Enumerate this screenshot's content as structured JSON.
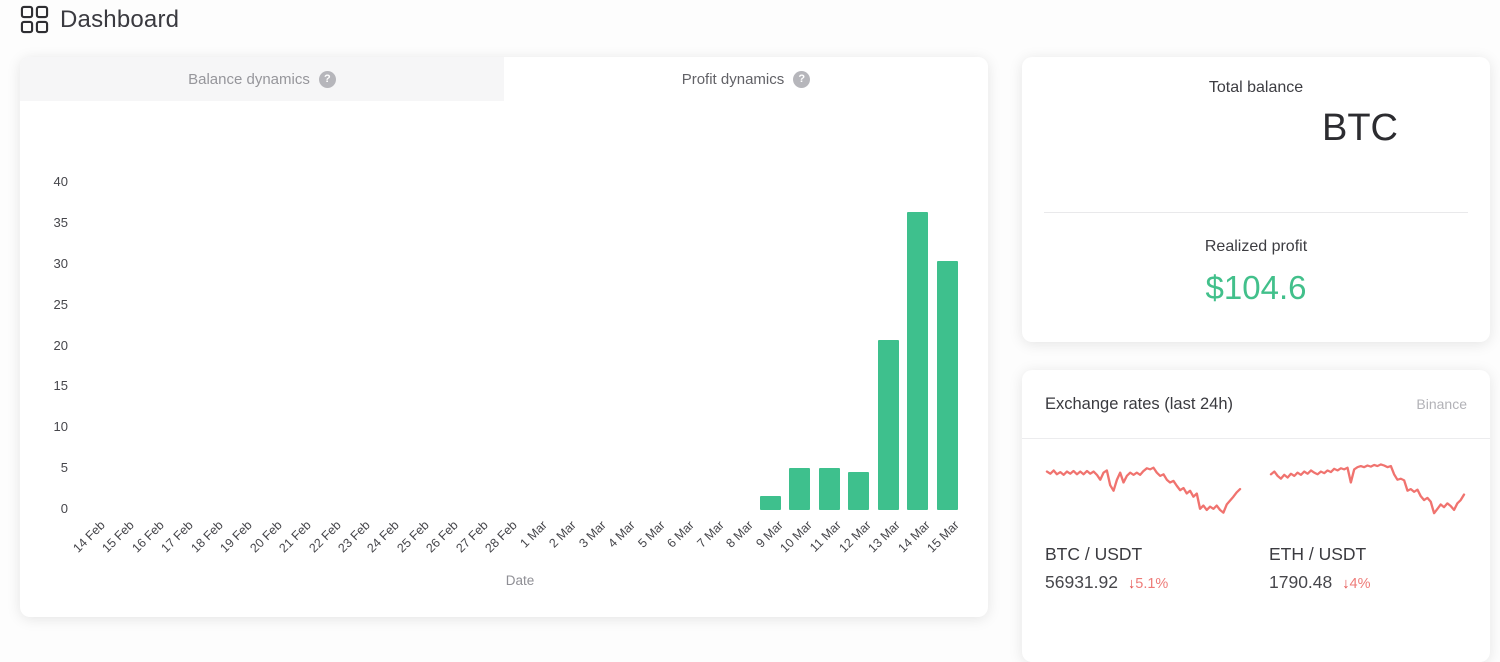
{
  "header": {
    "title": "Dashboard"
  },
  "tabs": [
    {
      "label": "Balance dynamics",
      "active": false
    },
    {
      "label": "Profit dynamics",
      "active": true
    }
  ],
  "icons": {
    "question_mark": "?",
    "down_arrow": "↓",
    "dashboard_grid": "grid-2x2-icon"
  },
  "balance_card": {
    "total_balance_label": "Total balance",
    "total_balance_currency": "BTC",
    "realized_profit_label": "Realized profit",
    "realized_profit_value": "$104.6",
    "profit_color": "#42c08b"
  },
  "exchange_card": {
    "title": "Exchange rates (last 24h)",
    "source": "Binance",
    "spark_color": "#f0736f",
    "arrow_color": "#e4504e",
    "change_color": "#ee7b78",
    "pairs": [
      {
        "pair": "BTC / USDT",
        "price": "56931.92",
        "change": "5.1%",
        "direction": "down"
      },
      {
        "pair": "ETH / USDT",
        "price": "1790.48",
        "change": "4%",
        "direction": "down"
      }
    ]
  },
  "chart_data": [
    {
      "type": "bar",
      "title": "Profit dynamics",
      "xlabel": "Date",
      "ylabel": "",
      "ylim": [
        0,
        40
      ],
      "yticks": [
        0,
        5,
        10,
        15,
        20,
        25,
        30,
        35,
        40
      ],
      "grid": false,
      "bar_color": "#3ec08d",
      "categories": [
        "14 Feb",
        "15 Feb",
        "16 Feb",
        "17 Feb",
        "18 Feb",
        "19 Feb",
        "20 Feb",
        "21 Feb",
        "22 Feb",
        "23 Feb",
        "24 Feb",
        "25 Feb",
        "26 Feb",
        "27 Feb",
        "28 Feb",
        "1 Mar",
        "2 Mar",
        "3 Mar",
        "4 Mar",
        "5 Mar",
        "6 Mar",
        "7 Mar",
        "8 Mar",
        "9 Mar",
        "10 Mar",
        "11 Mar",
        "12 Mar",
        "13 Mar",
        "14 Mar",
        "15 Mar"
      ],
      "values": [
        0,
        0,
        0,
        0,
        0,
        0,
        0,
        0,
        0,
        0,
        0,
        0,
        0,
        0,
        0,
        0,
        0,
        0,
        0,
        0,
        0,
        0,
        0,
        1.7,
        5.1,
        5.1,
        4.6,
        20.8,
        36.4,
        30.4
      ]
    },
    {
      "type": "line",
      "title": "BTC / USDT last 24h sparkline",
      "legend": "BTC / USDT",
      "y_levels_pct": [
        80,
        76,
        82,
        75,
        79,
        74,
        80,
        76,
        81,
        75,
        80,
        75,
        81,
        76,
        80,
        74,
        65,
        78,
        82,
        55,
        45,
        65,
        78,
        60,
        72,
        78,
        74,
        78,
        74,
        81,
        86,
        84,
        87,
        78,
        72,
        75,
        65,
        60,
        63,
        54,
        46,
        50,
        40,
        45,
        34,
        40,
        12,
        18,
        10,
        16,
        12,
        18,
        10,
        5,
        20,
        27,
        34,
        42,
        48
      ]
    },
    {
      "type": "line",
      "title": "ETH / USDT last 24h sparkline",
      "legend": "ETH / USDT",
      "y_levels_pct": [
        75,
        80,
        72,
        67,
        74,
        69,
        76,
        72,
        78,
        74,
        80,
        76,
        82,
        78,
        75,
        80,
        77,
        82,
        79,
        85,
        82,
        86,
        84,
        87,
        60,
        84,
        88,
        90,
        88,
        91,
        89,
        92,
        90,
        93,
        91,
        88,
        90,
        75,
        65,
        67,
        64,
        45,
        48,
        43,
        47,
        35,
        28,
        32,
        25,
        4,
        12,
        20,
        15,
        22,
        17,
        10,
        22,
        28,
        38
      ]
    }
  ]
}
